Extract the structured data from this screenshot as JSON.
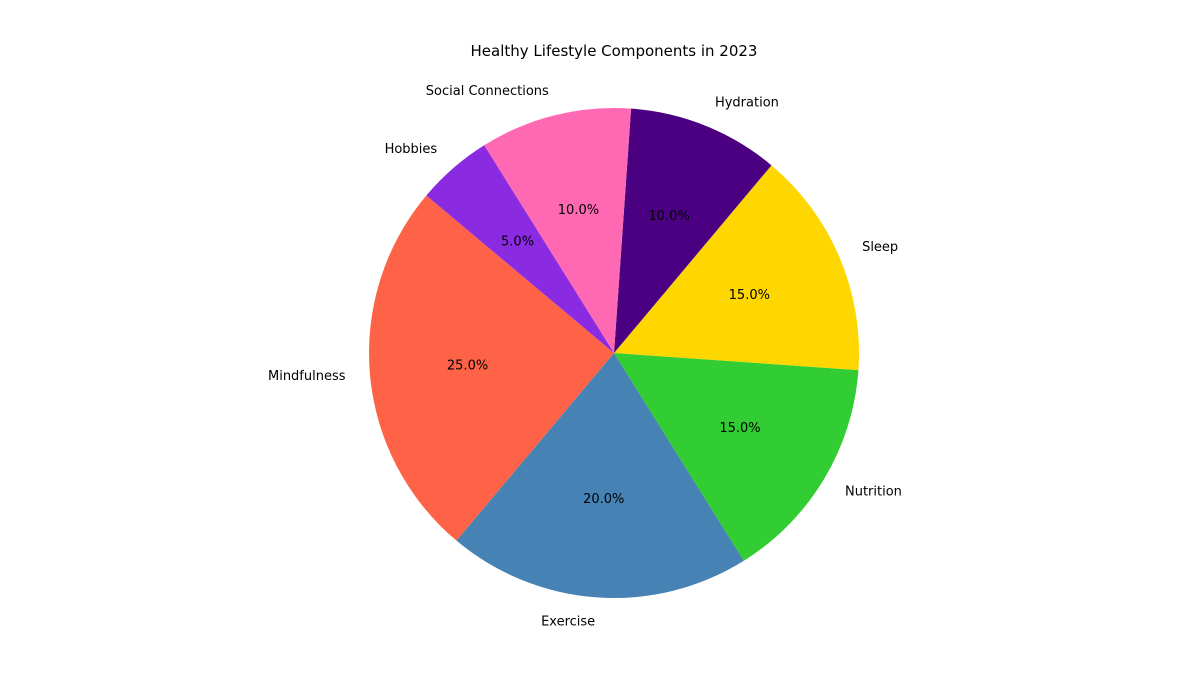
{
  "chart_data": {
    "type": "pie",
    "title": "Healthy Lifestyle Components in 2023",
    "categories": [
      "Mindfulness",
      "Exercise",
      "Nutrition",
      "Sleep",
      "Hydration",
      "Social Connections",
      "Hobbies"
    ],
    "values": [
      25.0,
      20.0,
      15.0,
      15.0,
      10.0,
      10.0,
      5.0
    ],
    "percent_labels": [
      "25.0%",
      "20.0%",
      "15.0%",
      "15.0%",
      "10.0%",
      "10.0%",
      "5.0%"
    ],
    "colors": [
      "#FF6347",
      "#4682B4",
      "#32CD32",
      "#FFD700",
      "#4B0082",
      "#FF69B4",
      "#8A2BE2"
    ],
    "start_angle_deg": 140,
    "direction": "counterclockwise",
    "legend": "none"
  }
}
